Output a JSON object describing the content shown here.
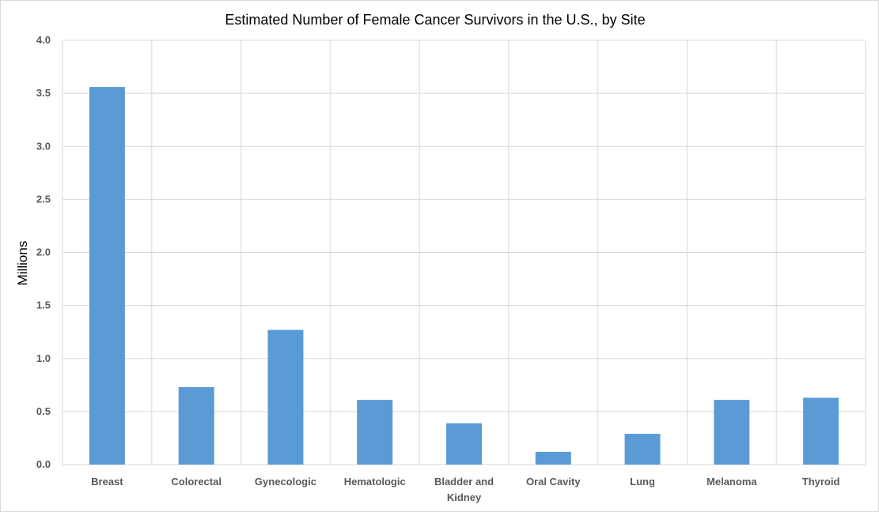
{
  "chart_data": {
    "type": "bar",
    "title": "Estimated Number of Female Cancer Survivors in the U.S., by Site",
    "xlabel": "",
    "ylabel": "Millions",
    "ylim": [
      0,
      4.0
    ],
    "yticks": [
      "0.0",
      "0.5",
      "1.0",
      "1.5",
      "2.0",
      "2.5",
      "3.0",
      "3.5",
      "4.0"
    ],
    "grid": true,
    "categories": [
      [
        "Breast"
      ],
      [
        "Colorectal"
      ],
      [
        "Gynecologic"
      ],
      [
        "Hematologic"
      ],
      [
        "Bladder and",
        "Kidney"
      ],
      [
        "Oral Cavity"
      ],
      [
        "Lung"
      ],
      [
        "Melanoma"
      ],
      [
        "Thyroid"
      ]
    ],
    "values": [
      3.56,
      0.73,
      1.27,
      0.61,
      0.39,
      0.12,
      0.29,
      0.61,
      0.63
    ],
    "colors": {
      "bar": "#5b9bd5",
      "grid": "#d9d9d9",
      "tick_text": "#595959",
      "title_text": "#000000"
    }
  }
}
